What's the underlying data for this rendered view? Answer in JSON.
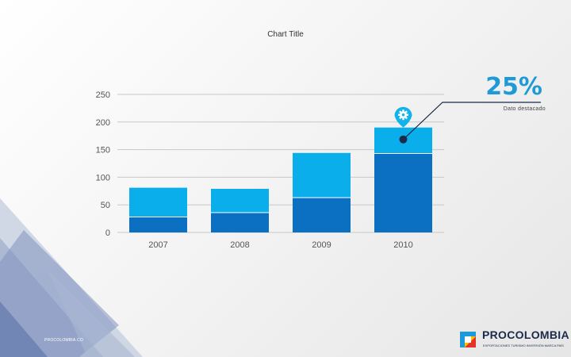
{
  "chart_data": {
    "type": "bar",
    "stacked": true,
    "title": "Chart Title",
    "categories": [
      "2007",
      "2008",
      "2009",
      "2010"
    ],
    "series": [
      {
        "values": [
          28,
          36,
          63,
          143
        ],
        "color": "#0b6fc2"
      },
      {
        "values": [
          53,
          43,
          81,
          47
        ],
        "color": "#0aaeea"
      }
    ],
    "ylim": [
      0,
      250
    ],
    "yticks": [
      0,
      50,
      100,
      150,
      200,
      250
    ],
    "grid": true,
    "xlabel": "",
    "ylabel": ""
  },
  "callout": {
    "value": "25%",
    "label": "Dato destacado",
    "icon": "gear-icon",
    "category_index": 3
  },
  "footer": {
    "text": "PROCOLOMBIA.CO"
  },
  "logo": {
    "name": "PROCOLOMBIA",
    "tagline": "EXPORTACIONES TURISMO INVERSIÓN MARCA PAÍS"
  },
  "colors": {
    "accent": "#1e9ad6",
    "navy": "#1b2a4a",
    "dark_bar": "#0b6fc2",
    "light_bar": "#0aaeea"
  }
}
